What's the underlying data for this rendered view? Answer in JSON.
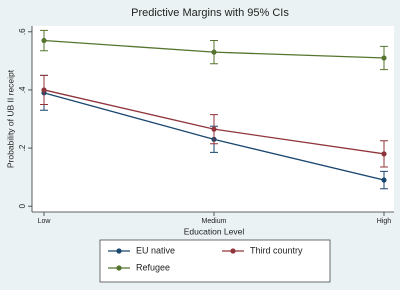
{
  "chart_data": {
    "type": "line",
    "title": "Predictive Margins with 95% CIs",
    "x_label": "Education Level",
    "y_label": "Probability of UB II receipt",
    "categories": [
      "Low",
      "Medium",
      "High"
    ],
    "ylim": [
      -0.02,
      0.62
    ],
    "yticks": [
      {
        "value": 0,
        "label": "0"
      },
      {
        "value": 0.2,
        "label": ".2"
      },
      {
        "value": 0.4,
        "label": ".4"
      },
      {
        "value": 0.6,
        "label": ".6"
      }
    ],
    "grid": false,
    "series": [
      {
        "name": "EU native",
        "color": "#1a476f",
        "values": [
          0.39,
          0.23,
          0.09
        ],
        "errors": [
          0.06,
          0.045,
          0.03
        ]
      },
      {
        "name": "Third country",
        "color": "#90353b",
        "values": [
          0.4,
          0.265,
          0.18
        ],
        "errors": [
          0.05,
          0.05,
          0.045
        ]
      },
      {
        "name": "Refugee",
        "color": "#55752f",
        "values": [
          0.57,
          0.53,
          0.51
        ],
        "errors": [
          0.035,
          0.04,
          0.04
        ]
      }
    ]
  }
}
